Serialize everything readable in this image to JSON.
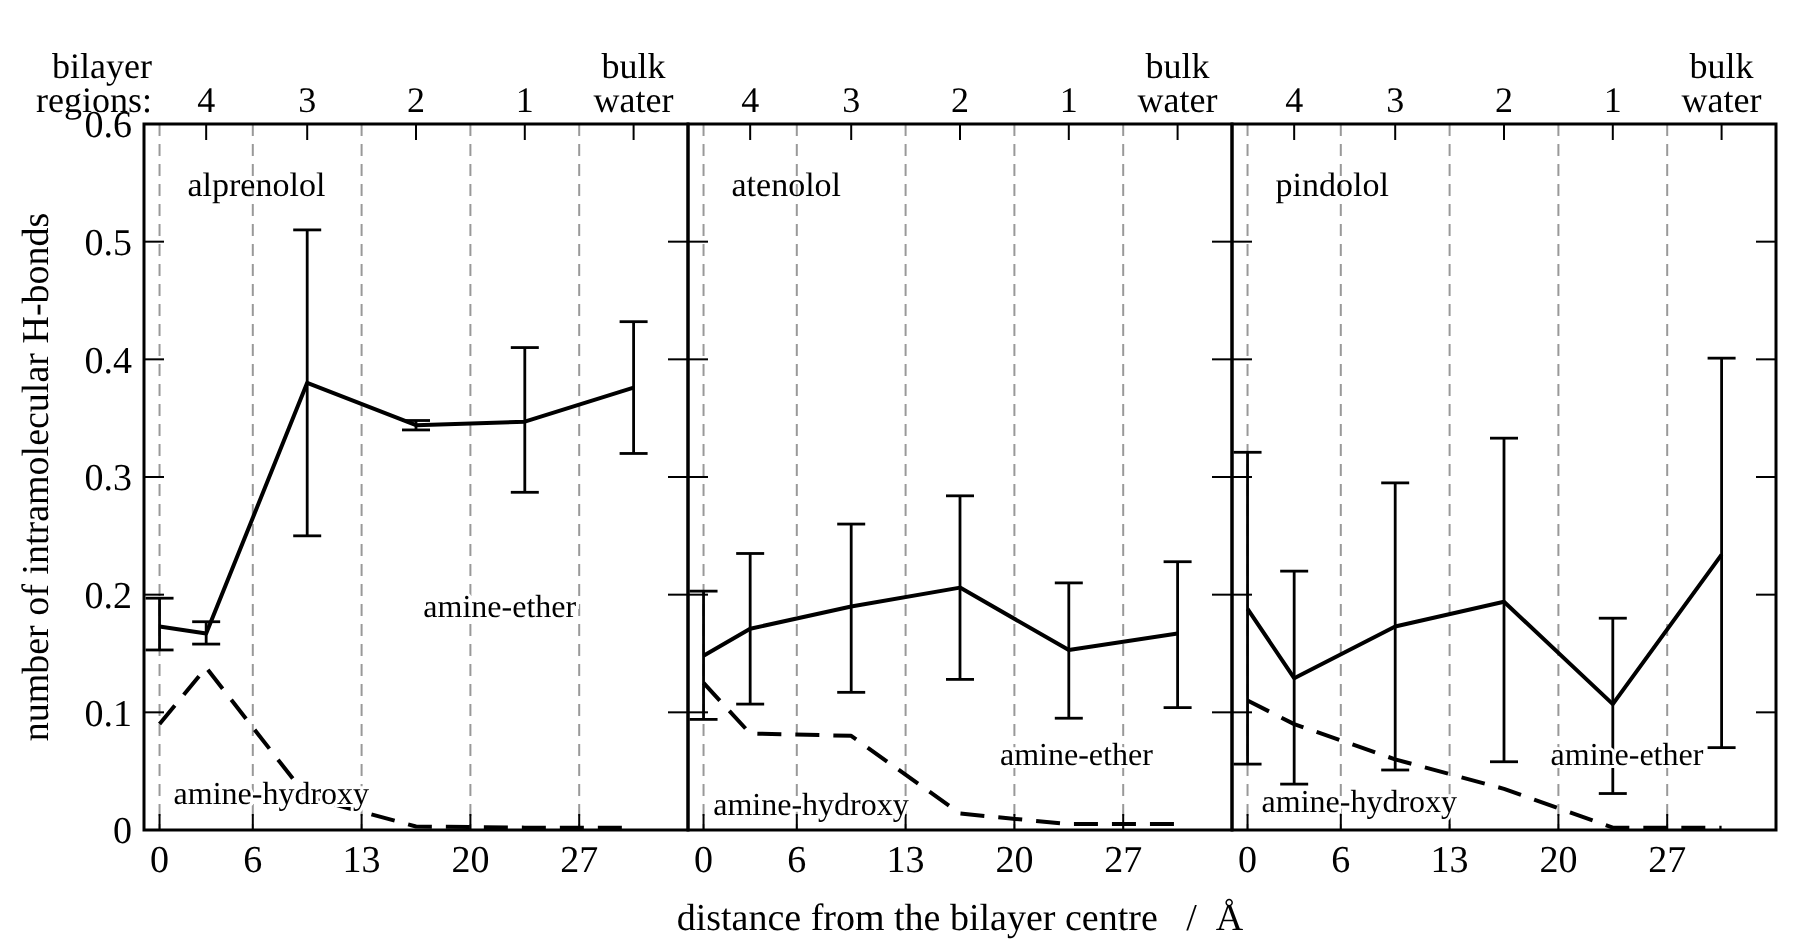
{
  "chart_data": [
    {
      "type": "line",
      "title": "alprenolol",
      "ylabel": "number of intramolecular H-bonds",
      "x2label": "bilayer regions:",
      "x": [
        0,
        3,
        9.5,
        16.5,
        23.5,
        30.5
      ],
      "xlim": [
        -1,
        34
      ],
      "xticks": [
        0,
        6,
        13,
        20,
        27
      ],
      "ylim": [
        0,
        0.6
      ],
      "yticks": [
        0,
        0.1,
        0.2,
        0.3,
        0.4,
        0.5,
        0.6
      ],
      "grid": "x",
      "series": [
        {
          "color": "#000000",
          "line_style": "solid",
          "values": [
            0.173,
            0.167,
            0.38,
            0.344,
            0.347,
            0.376
          ],
          "errors": [
            [
              0.153,
              0.197
            ],
            [
              0.158,
              0.177
            ],
            [
              0.25,
              0.51
            ],
            [
              0.34,
              0.348
            ],
            [
              0.287,
              0.41
            ],
            [
              0.32,
              0.432
            ]
          ]
        },
        {
          "color": "#000000",
          "line_style": "dashed",
          "values": [
            0.09,
            0.138,
            0.028,
            0.003,
            0.002,
            0.002
          ]
        }
      ],
      "annotations": [
        "amine-ether",
        "amine-hydroxy",
        "4",
        "3",
        "2",
        "1",
        "bulk water"
      ]
    },
    {
      "type": "line",
      "title": "atenolol",
      "xlabel": "distance from the bilayer centre   /  Å",
      "x": [
        0,
        3,
        9.5,
        16.5,
        23.5,
        30.5
      ],
      "xlim": [
        -1,
        34
      ],
      "xticks": [
        0,
        6,
        13,
        20,
        27
      ],
      "ylim": [
        0,
        0.6
      ],
      "yticks": [
        0,
        0.1,
        0.2,
        0.3,
        0.4,
        0.5,
        0.6
      ],
      "grid": "x",
      "tick_labels": "x",
      "series": [
        {
          "color": "#000000",
          "line_style": "solid",
          "values": [
            0.148,
            0.171,
            0.19,
            0.206,
            0.153,
            0.167
          ],
          "errors": [
            [
              0.094,
              0.203
            ],
            [
              0.107,
              0.235
            ],
            [
              0.117,
              0.26
            ],
            [
              0.128,
              0.284
            ],
            [
              0.095,
              0.21
            ],
            [
              0.104,
              0.228
            ]
          ]
        },
        {
          "color": "#000000",
          "line_style": "dashed",
          "values": [
            0.125,
            0.082,
            0.08,
            0.014,
            0.005,
            0.005
          ]
        }
      ],
      "annotations": [
        "amine-ether",
        "amine-hydroxy",
        "4",
        "3",
        "2",
        "1",
        "bulk water"
      ]
    },
    {
      "type": "line",
      "title": "pindolol",
      "x": [
        0,
        3,
        9.5,
        16.5,
        23.5,
        30.5
      ],
      "xlim": [
        -1,
        34
      ],
      "xticks": [
        0,
        6,
        13,
        20,
        27
      ],
      "ylim": [
        0,
        0.6
      ],
      "yticks": [
        0,
        0.1,
        0.2,
        0.3,
        0.4,
        0.5,
        0.6
      ],
      "grid": "x",
      "tick_labels": "x",
      "series": [
        {
          "color": "#000000",
          "line_style": "solid",
          "values": [
            0.188,
            0.129,
            0.173,
            0.194,
            0.107,
            0.234
          ],
          "errors": [
            [
              0.056,
              0.321
            ],
            [
              0.039,
              0.22
            ],
            [
              0.051,
              0.295
            ],
            [
              0.058,
              0.333
            ],
            [
              0.031,
              0.18
            ],
            [
              0.07,
              0.401
            ]
          ]
        },
        {
          "color": "#000000",
          "line_style": "dashed",
          "values": [
            0.11,
            0.09,
            0.06,
            0.035,
            0.002,
            0.002
          ]
        }
      ],
      "annotations": [
        "amine-ether",
        "amine-hydroxy",
        "4",
        "3",
        "2",
        "1",
        "bulk water"
      ]
    }
  ]
}
